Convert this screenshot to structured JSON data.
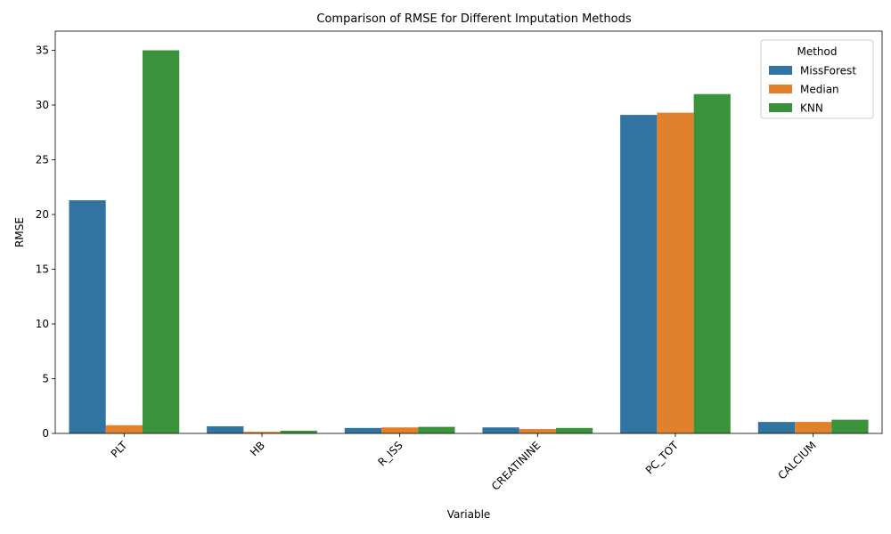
{
  "chart_data": {
    "type": "bar",
    "title": "Comparison of RMSE for Different Imputation Methods",
    "xlabel": "Variable",
    "ylabel": "RMSE",
    "categories": [
      "PLT",
      "HB",
      "R_ISS",
      "CREATININE",
      "PC_TOT",
      "CALCIUM"
    ],
    "series": [
      {
        "name": "MissForest",
        "color": "#3274a1",
        "values": [
          21.3,
          0.65,
          0.5,
          0.55,
          29.1,
          1.05
        ]
      },
      {
        "name": "Median",
        "color": "#e1812c",
        "values": [
          0.75,
          0.15,
          0.55,
          0.4,
          29.3,
          1.05
        ]
      },
      {
        "name": "KNN",
        "color": "#3a923a",
        "values": [
          35.0,
          0.25,
          0.6,
          0.5,
          31.0,
          1.25
        ]
      }
    ],
    "ylim": [
      0,
      36.75
    ],
    "yticks": [
      0,
      5,
      10,
      15,
      20,
      25,
      30,
      35
    ],
    "grid": false,
    "legend": {
      "title": "Method",
      "placement": "top-right"
    }
  }
}
